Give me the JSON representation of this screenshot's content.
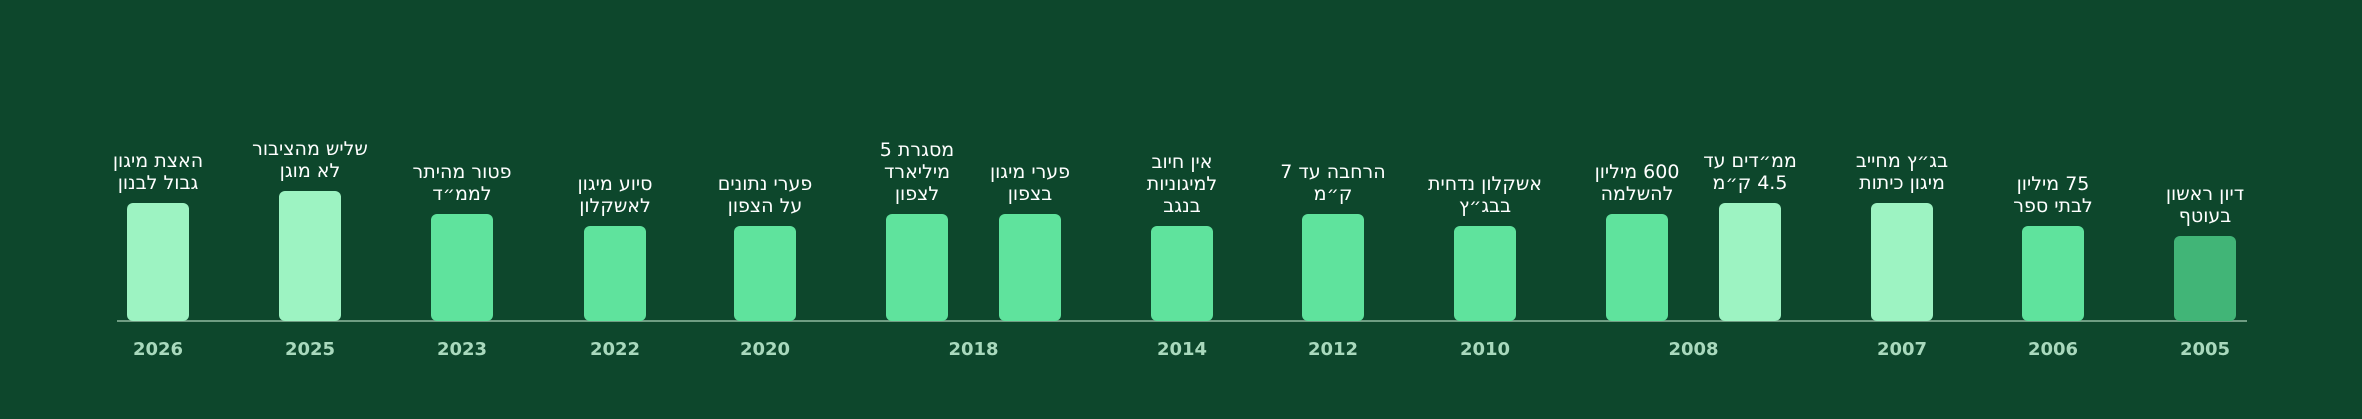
{
  "timeline": [
    {
      "year": "2026",
      "events": [
        [
          "האצת מיגון",
          "גבול לבנון"
        ]
      ]
    },
    {
      "year": "2025",
      "events": [
        [
          "שליש מהציבור",
          "לא מוגן"
        ]
      ]
    },
    {
      "year": "2023",
      "events": [
        [
          "פטור מהיתר",
          "לממ״ד"
        ]
      ]
    },
    {
      "year": "2022",
      "events": [
        [
          "סיוע מיגון",
          "לאשקלון"
        ]
      ]
    },
    {
      "year": "2020",
      "events": [
        [
          "פערי נתונים",
          "על הצפון"
        ]
      ]
    },
    {
      "year": "2018",
      "events": [
        [
          "מסגרת 5",
          "מיליארד",
          "לצפון"
        ],
        [
          "פערי מיגון",
          "בצפון"
        ]
      ]
    },
    {
      "year": "2014",
      "events": [
        [
          "אין חיוב",
          "למיגוניות",
          "בנגב"
        ]
      ]
    },
    {
      "year": "2012",
      "events": [
        [
          "הרחבה עד 7",
          "ק״מ"
        ]
      ]
    },
    {
      "year": "2010",
      "events": [
        [
          "אשקלון נדחית",
          "בבג״ץ"
        ]
      ]
    },
    {
      "year": "2008",
      "events": [
        [
          "600 מיליון",
          "להשלמה"
        ],
        [
          "ממ״דים עד",
          "4.5 ק״מ"
        ]
      ]
    },
    {
      "year": "2007",
      "events": [
        [
          "בג״ץ מחייב",
          "מיגון כיתות"
        ]
      ]
    },
    {
      "year": "2006",
      "events": [
        [
          "75 מיליון",
          "לבתי ספר"
        ]
      ]
    },
    {
      "year": "2005",
      "events": [
        [
          "דיון ראשון",
          "בעוטף"
        ]
      ]
    }
  ]
}
